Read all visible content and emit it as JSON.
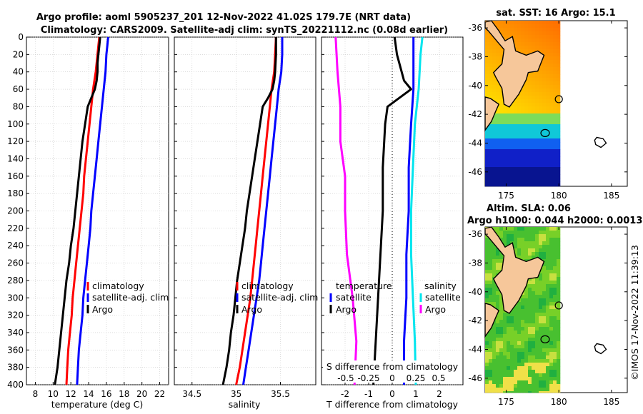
{
  "header": {
    "line1": "Argo profile: aoml 5905237_201 12-Nov-2022 41.02S 179.7E (NRT data)",
    "line2": "Climatology: CARS2009. Satellite-adj clim: synTS_20221112.nc (0.08d earlier)"
  },
  "colors": {
    "climatology": "#ff0000",
    "satellite": "#0000ff",
    "argo": "#000000",
    "t_satellite": "#0000ff",
    "t_argo": "#000000",
    "s_satellite": "#00e5ee",
    "s_argo": "#ff00ff",
    "land": "#f6c79a"
  },
  "chart_data": [
    {
      "type": "line",
      "name": "temperature",
      "xlabel": "temperature (deg C)",
      "ylabel": "",
      "xlim": [
        7,
        23
      ],
      "ylim": [
        0,
        400
      ],
      "yreversed": true,
      "xticks": [
        8,
        10,
        12,
        14,
        16,
        18,
        20,
        22
      ],
      "yticks": [
        0,
        20,
        40,
        60,
        80,
        100,
        120,
        140,
        160,
        180,
        200,
        220,
        240,
        260,
        280,
        300,
        320,
        340,
        360,
        380,
        400
      ],
      "grid": true,
      "legend": [
        "climatology",
        "satellite-adj. clim",
        "Argo"
      ],
      "series": [
        {
          "name": "climatology",
          "color": "climatology",
          "points": [
            [
              15.2,
              0
            ],
            [
              15.1,
              10
            ],
            [
              15.0,
              20
            ],
            [
              14.8,
              40
            ],
            [
              14.5,
              60
            ],
            [
              14.3,
              80
            ],
            [
              14.1,
              100
            ],
            [
              13.9,
              120
            ],
            [
              13.7,
              140
            ],
            [
              13.5,
              160
            ],
            [
              13.4,
              180
            ],
            [
              13.2,
              200
            ],
            [
              13.0,
              220
            ],
            [
              12.8,
              240
            ],
            [
              12.6,
              260
            ],
            [
              12.4,
              280
            ],
            [
              12.2,
              300
            ],
            [
              12.1,
              320
            ],
            [
              11.9,
              340
            ],
            [
              11.7,
              360
            ],
            [
              11.6,
              380
            ],
            [
              11.5,
              400
            ]
          ]
        },
        {
          "name": "satellite-adj. clim",
          "color": "satellite",
          "points": [
            [
              16.2,
              0
            ],
            [
              16.1,
              10
            ],
            [
              16.0,
              20
            ],
            [
              15.9,
              40
            ],
            [
              15.7,
              60
            ],
            [
              15.5,
              80
            ],
            [
              15.3,
              100
            ],
            [
              15.1,
              120
            ],
            [
              14.9,
              140
            ],
            [
              14.7,
              160
            ],
            [
              14.5,
              180
            ],
            [
              14.3,
              200
            ],
            [
              14.2,
              220
            ],
            [
              14.0,
              240
            ],
            [
              13.8,
              260
            ],
            [
              13.6,
              280
            ],
            [
              13.4,
              300
            ],
            [
              13.3,
              320
            ],
            [
              13.1,
              340
            ],
            [
              12.9,
              360
            ],
            [
              12.8,
              380
            ],
            [
              12.7,
              400
            ]
          ]
        },
        {
          "name": "Argo",
          "color": "argo",
          "points": [
            [
              15.3,
              0
            ],
            [
              15.2,
              10
            ],
            [
              15.1,
              20
            ],
            [
              15.0,
              30
            ],
            [
              15.0,
              40
            ],
            [
              14.9,
              50
            ],
            [
              14.7,
              60
            ],
            [
              14.3,
              70
            ],
            [
              13.9,
              80
            ],
            [
              13.6,
              100
            ],
            [
              13.3,
              120
            ],
            [
              13.1,
              140
            ],
            [
              12.9,
              160
            ],
            [
              12.7,
              180
            ],
            [
              12.5,
              200
            ],
            [
              12.3,
              220
            ],
            [
              12.0,
              240
            ],
            [
              11.8,
              260
            ],
            [
              11.5,
              280
            ],
            [
              11.3,
              300
            ],
            [
              11.1,
              320
            ],
            [
              10.9,
              340
            ],
            [
              10.7,
              360
            ],
            [
              10.5,
              380
            ],
            [
              10.2,
              400
            ]
          ]
        }
      ]
    },
    {
      "type": "line",
      "name": "salinity",
      "xlabel": "salinity",
      "ylabel": "",
      "xlim": [
        34.3,
        35.9
      ],
      "ylim": [
        0,
        400
      ],
      "yreversed": true,
      "xticks": [
        34.5,
        35,
        35.5
      ],
      "xticklabels": [
        "34.5",
        "35",
        "35.5"
      ],
      "grid": true,
      "legend": [
        "climatology",
        "satellite-adj. clim",
        "Argo"
      ],
      "series": [
        {
          "name": "climatology",
          "color": "climatology",
          "points": [
            [
              35.45,
              0
            ],
            [
              35.44,
              20
            ],
            [
              35.43,
              40
            ],
            [
              35.4,
              60
            ],
            [
              35.38,
              80
            ],
            [
              35.36,
              100
            ],
            [
              35.34,
              120
            ],
            [
              35.32,
              140
            ],
            [
              35.3,
              160
            ],
            [
              35.28,
              180
            ],
            [
              35.26,
              200
            ],
            [
              35.24,
              220
            ],
            [
              35.22,
              240
            ],
            [
              35.2,
              260
            ],
            [
              35.18,
              280
            ],
            [
              35.16,
              300
            ],
            [
              35.13,
              320
            ],
            [
              35.1,
              340
            ],
            [
              35.07,
              360
            ],
            [
              35.04,
              380
            ],
            [
              35.0,
              400
            ]
          ]
        },
        {
          "name": "satellite-adj. clim",
          "color": "satellite",
          "points": [
            [
              35.52,
              0
            ],
            [
              35.52,
              20
            ],
            [
              35.51,
              40
            ],
            [
              35.48,
              60
            ],
            [
              35.46,
              80
            ],
            [
              35.44,
              100
            ],
            [
              35.42,
              120
            ],
            [
              35.4,
              140
            ],
            [
              35.38,
              160
            ],
            [
              35.36,
              180
            ],
            [
              35.34,
              200
            ],
            [
              35.32,
              220
            ],
            [
              35.3,
              240
            ],
            [
              35.28,
              260
            ],
            [
              35.26,
              280
            ],
            [
              35.23,
              300
            ],
            [
              35.2,
              320
            ],
            [
              35.17,
              340
            ],
            [
              35.14,
              360
            ],
            [
              35.11,
              380
            ],
            [
              35.08,
              400
            ]
          ]
        },
        {
          "name": "Argo",
          "color": "argo",
          "points": [
            [
              35.45,
              0
            ],
            [
              35.45,
              20
            ],
            [
              35.44,
              40
            ],
            [
              35.43,
              50
            ],
            [
              35.41,
              60
            ],
            [
              35.36,
              70
            ],
            [
              35.3,
              80
            ],
            [
              35.27,
              100
            ],
            [
              35.24,
              120
            ],
            [
              35.21,
              140
            ],
            [
              35.18,
              160
            ],
            [
              35.15,
              180
            ],
            [
              35.12,
              200
            ],
            [
              35.1,
              220
            ],
            [
              35.07,
              240
            ],
            [
              35.04,
              260
            ],
            [
              35.01,
              280
            ],
            [
              34.99,
              300
            ],
            [
              34.97,
              320
            ],
            [
              34.94,
              340
            ],
            [
              34.92,
              360
            ],
            [
              34.89,
              380
            ],
            [
              34.85,
              400
            ]
          ]
        }
      ]
    },
    {
      "type": "line",
      "name": "difference",
      "xlabel": "T difference from climatology",
      "ylabel": "",
      "xlim": [
        -3,
        3
      ],
      "ylim": [
        0,
        400
      ],
      "yreversed": true,
      "xticks": [
        -2,
        -1,
        0,
        1,
        2
      ],
      "top_axis_label": "S difference from climatology",
      "top_ticklabels": [
        "-0.5",
        "-0.25",
        "0",
        "0.25",
        "0.5"
      ],
      "grid": true,
      "legend_left": {
        "title": "temperature",
        "items": [
          "satellite",
          "Argo"
        ]
      },
      "legend_right": {
        "title": "salinity",
        "items": [
          "satellite",
          "Argo"
        ]
      },
      "series": [
        {
          "name": "T satellite",
          "color": "t_satellite",
          "points": [
            [
              0.9,
              0
            ],
            [
              0.9,
              20
            ],
            [
              0.9,
              40
            ],
            [
              0.9,
              60
            ],
            [
              0.8,
              100
            ],
            [
              0.7,
              150
            ],
            [
              0.7,
              200
            ],
            [
              0.6,
              250
            ],
            [
              0.6,
              300
            ],
            [
              0.5,
              350
            ],
            [
              0.5,
              400
            ]
          ]
        },
        {
          "name": "T Argo",
          "color": "t_argo",
          "points": [
            [
              0.1,
              0
            ],
            [
              0.2,
              20
            ],
            [
              0.4,
              40
            ],
            [
              0.5,
              50
            ],
            [
              0.8,
              60
            ],
            [
              0.3,
              70
            ],
            [
              -0.2,
              80
            ],
            [
              -0.3,
              100
            ],
            [
              -0.4,
              150
            ],
            [
              -0.4,
              200
            ],
            [
              -0.5,
              250
            ],
            [
              -0.6,
              300
            ],
            [
              -0.7,
              350
            ],
            [
              -0.8,
              400
            ]
          ]
        },
        {
          "name": "S satellite",
          "color": "s_satellite",
          "points": [
            [
              0.32,
              0
            ],
            [
              0.3,
              20
            ],
            [
              0.28,
              60
            ],
            [
              0.24,
              100
            ],
            [
              0.22,
              150
            ],
            [
              0.2,
              200
            ],
            [
              0.2,
              250
            ],
            [
              0.22,
              300
            ],
            [
              0.24,
              350
            ],
            [
              0.25,
              400
            ]
          ]
        },
        {
          "name": "S Argo",
          "color": "s_argo",
          "points": [
            [
              -0.6,
              0
            ],
            [
              -0.58,
              40
            ],
            [
              -0.55,
              80
            ],
            [
              -0.55,
              120
            ],
            [
              -0.5,
              160
            ],
            [
              -0.5,
              200
            ],
            [
              -0.48,
              250
            ],
            [
              -0.42,
              300
            ],
            [
              -0.38,
              350
            ],
            [
              -0.4,
              400
            ]
          ]
        }
      ]
    },
    {
      "type": "heatmap",
      "name": "sst_map",
      "title": "sat. SST: 16 Argo: 15.1",
      "xlim": [
        173,
        186.5
      ],
      "ylim": [
        -47,
        -35.5
      ],
      "xticks": [
        175,
        180,
        185
      ],
      "yticks": [
        -36,
        -38,
        -40,
        -42,
        -44,
        -46
      ],
      "argo_position": [
        179.7,
        -41.02
      ]
    },
    {
      "type": "heatmap",
      "name": "sla_map",
      "title_line1": "Altim. SLA: 0.06",
      "title_line2": "Argo h1000: 0.044 h2000: 0.0013",
      "xlim": [
        173,
        186.5
      ],
      "ylim": [
        -47,
        -35.5
      ],
      "xticks": [
        175,
        180,
        185
      ],
      "yticks": [
        -36,
        -38,
        -40,
        -42,
        -44,
        -46
      ],
      "argo_position": [
        179.7,
        -41.02
      ]
    }
  ],
  "footer": {
    "copyright": "©IMOS 17-Nov-2022 11:39:13"
  }
}
